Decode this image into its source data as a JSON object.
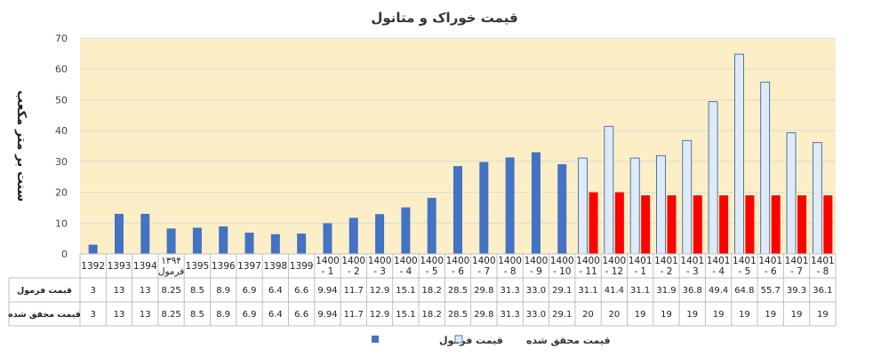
{
  "chart_data": {
    "type": "bar",
    "title": "قیمت خوراک و متانول",
    "ylabel": "سنت بر متر مکعب",
    "xlabel": "",
    "ylim": [
      0,
      70
    ],
    "yticks": [
      0,
      10,
      20,
      30,
      40,
      50,
      60,
      70
    ],
    "grid": true,
    "legend_position": "bottom",
    "categories": [
      "1392",
      "1393",
      "1394",
      "۱۳۹۴ فرمول",
      "1395",
      "1396",
      "1397",
      "1398",
      "1399",
      "1400 - 1",
      "1400 - 2",
      "1400 - 3",
      "1400 - 4",
      "1400 - 5",
      "1400 - 6",
      "1400 - 7",
      "1400 - 8",
      "1400 - 9",
      "1400 - 10",
      "1400 - 11",
      "1400 - 12",
      "1401 - 1",
      "1401 - 2",
      "1401 - 3",
      "1401 - 4",
      "1401 - 5",
      "1401 - 6",
      "1401 - 7",
      "1401 - 8"
    ],
    "series": [
      {
        "name": "قیمت فرمول",
        "values": [
          3,
          13,
          13,
          8.25,
          8.5,
          8.9,
          6.9,
          6.4,
          6.6,
          9.94,
          11.7,
          12.9,
          15.1,
          18.2,
          28.5,
          29.8,
          31.3,
          33.0,
          29.1,
          31.1,
          41.4,
          31.1,
          31.9,
          36.8,
          49.4,
          64.8,
          55.7,
          39.3,
          36.1
        ],
        "labels": [
          "3",
          "13",
          "13",
          "8.25",
          "8.5",
          "8.9",
          "6.9",
          "6.4",
          "6.6",
          "9.94",
          "11.7",
          "12.9",
          "15.1",
          "18.2",
          "28.5",
          "29.8",
          "31.3",
          "33.0",
          "29.1",
          "31.1",
          "41.4",
          "31.1",
          "31.9",
          "36.8",
          "49.4",
          "64.8",
          "55.7",
          "39.3",
          "36.1"
        ]
      },
      {
        "name": "قیمت محقق شده",
        "values": [
          3,
          13,
          13,
          8.25,
          8.5,
          8.9,
          6.9,
          6.4,
          6.6,
          9.94,
          11.7,
          12.9,
          15.1,
          18.2,
          28.5,
          29.8,
          31.3,
          33.0,
          29.1,
          20,
          20,
          19,
          19,
          19,
          19,
          19,
          19,
          19,
          19
        ],
        "labels": [
          "3",
          "13",
          "13",
          "8.25",
          "8.5",
          "8.9",
          "6.9",
          "6.4",
          "6.6",
          "9.94",
          "11.7",
          "12.9",
          "15.1",
          "18.2",
          "28.5",
          "29.8",
          "31.3",
          "33.0",
          "29.1",
          "20",
          "20",
          "19",
          "19",
          "19",
          "19",
          "19",
          "19",
          "19",
          "19"
        ]
      }
    ]
  },
  "colors": {
    "plot_background": "#FCEFC7",
    "gridline": "#D9D9D9",
    "formula_bar": "#4472C4",
    "formula_bar_light": "#DEEBF7",
    "formula_bar_light_border": "#2F5597",
    "realized_bar": "#FF0000"
  }
}
